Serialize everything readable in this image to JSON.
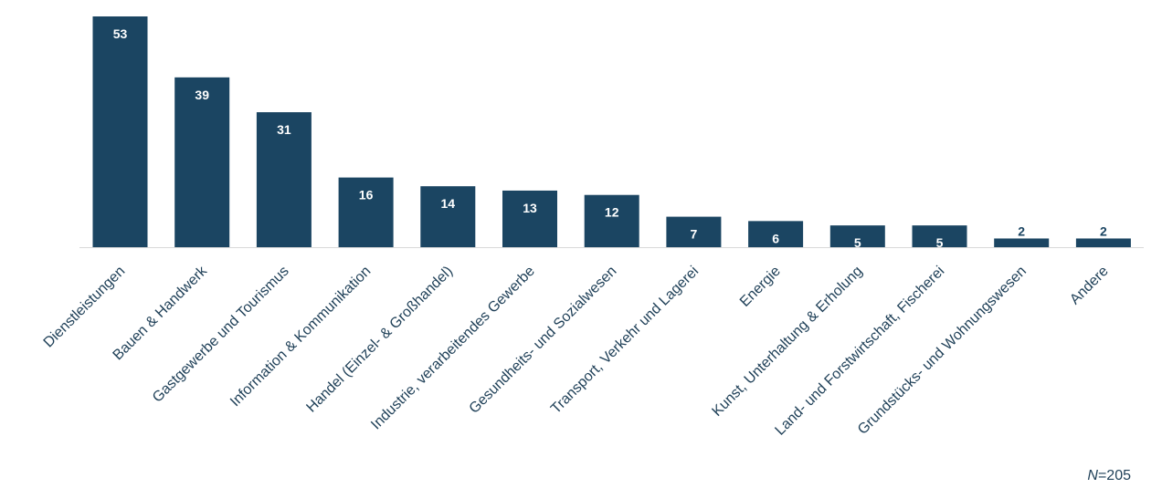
{
  "colors": {
    "bar": "#1b4562",
    "bar_label_inside": "#ffffff",
    "bar_label_outside": "#1b4562",
    "tick_text": "#1e3f57",
    "axis_line": "#d9d9d9"
  },
  "note": {
    "n_symbol": "N",
    "n_value": "=205"
  },
  "chart_data": {
    "type": "bar",
    "categories": [
      "Dienstleistungen",
      "Bauen & Handwerk",
      "Gastgewerbe und Tourismus",
      "Information & Kommunikation",
      "Handel (Einzel- & Großhandel)",
      "Industrie, verarbeitendes Gewerbe",
      "Gesundheits- und Sozialwesen",
      "Transport, Verkehr und Lagerei",
      "Energie",
      "Kunst, Unterhaltung & Erholung",
      "Land- und Forstwirtschaft, Fischerei",
      "Grundstücks- und Wohnungswesen",
      "Andere"
    ],
    "values": [
      53,
      39,
      31,
      16,
      14,
      13,
      12,
      7,
      6,
      5,
      5,
      2,
      2
    ],
    "ylim": [
      0,
      53
    ],
    "grid": false,
    "legend": "none",
    "data_labels": true
  }
}
